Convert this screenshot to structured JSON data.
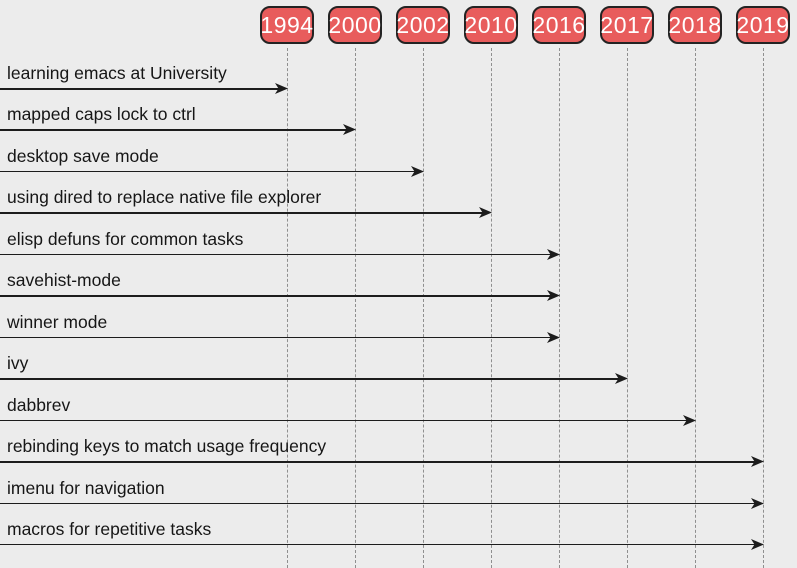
{
  "timeline": {
    "years": [
      "1994",
      "2000",
      "2002",
      "2010",
      "2016",
      "2017",
      "2018",
      "2019"
    ],
    "events": [
      {
        "label": "learning emacs at University",
        "year": "1994"
      },
      {
        "label": "mapped caps lock to ctrl",
        "year": "2000"
      },
      {
        "label": "desktop save mode",
        "year": "2002"
      },
      {
        "label": "using dired to replace native file explorer",
        "year": "2010"
      },
      {
        "label": "elisp defuns for common tasks",
        "year": "2016"
      },
      {
        "label": "savehist-mode",
        "year": "2016"
      },
      {
        "label": "winner mode",
        "year": "2016"
      },
      {
        "label": "ivy",
        "year": "2017"
      },
      {
        "label": "dabbrev",
        "year": "2018"
      },
      {
        "label": "rebinding keys to match usage frequency",
        "year": "2019"
      },
      {
        "label": "imenu for navigation",
        "year": "2019"
      },
      {
        "label": "macros for repetitive tasks",
        "year": "2019"
      }
    ],
    "colors": {
      "background": "#ececec",
      "year_box_fill": "#e85c5c",
      "year_box_border": "#232323",
      "year_text": "#ffffff",
      "label_text": "#161616",
      "arrow": "#1c1c1c",
      "gridline": "#8f8f8f"
    }
  }
}
